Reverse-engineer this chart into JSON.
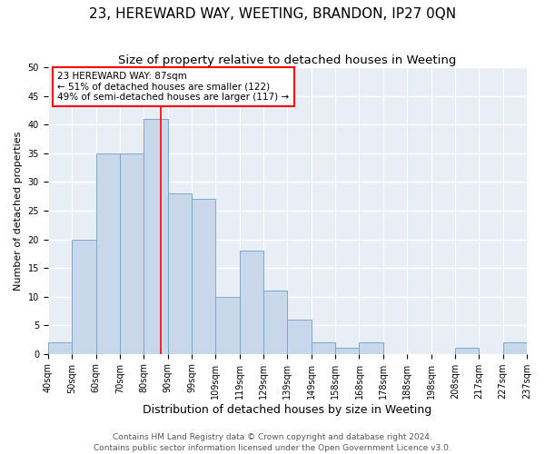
{
  "title": "23, HEREWARD WAY, WEETING, BRANDON, IP27 0QN",
  "subtitle": "Size of property relative to detached houses in Weeting",
  "xlabel": "Distribution of detached houses by size in Weeting",
  "ylabel": "Number of detached properties",
  "bin_labels": [
    "40sqm",
    "50sqm",
    "60sqm",
    "70sqm",
    "80sqm",
    "90sqm",
    "99sqm",
    "109sqm",
    "119sqm",
    "129sqm",
    "139sqm",
    "149sqm",
    "158sqm",
    "168sqm",
    "178sqm",
    "188sqm",
    "198sqm",
    "208sqm",
    "217sqm",
    "227sqm",
    "237sqm"
  ],
  "bar_heights": [
    2,
    20,
    35,
    35,
    41,
    28,
    27,
    10,
    18,
    11,
    6,
    2,
    1,
    2,
    0,
    0,
    0,
    1,
    0,
    2
  ],
  "bar_color": "#c8d8ea",
  "bar_edge_color": "#7aa8cc",
  "bar_edge_width": 0.7,
  "vline_color": "red",
  "vline_linewidth": 1.2,
  "annotation_text": "23 HEREWARD WAY: 87sqm\n← 51% of detached houses are smaller (122)\n49% of semi-detached houses are larger (117) →",
  "annotation_box_color": "white",
  "annotation_box_edge_color": "red",
  "ylim": [
    0,
    50
  ],
  "yticks": [
    0,
    5,
    10,
    15,
    20,
    25,
    30,
    35,
    40,
    45,
    50
  ],
  "plot_bg_color": "#e8eef5",
  "grid_color": "white",
  "footer_line1": "Contains HM Land Registry data © Crown copyright and database right 2024.",
  "footer_line2": "Contains public sector information licensed under the Open Government Licence v3.0.",
  "title_fontsize": 11,
  "subtitle_fontsize": 9.5,
  "xlabel_fontsize": 9,
  "ylabel_fontsize": 8,
  "tick_fontsize": 7,
  "annotation_fontsize": 7.5,
  "footer_fontsize": 6.5
}
